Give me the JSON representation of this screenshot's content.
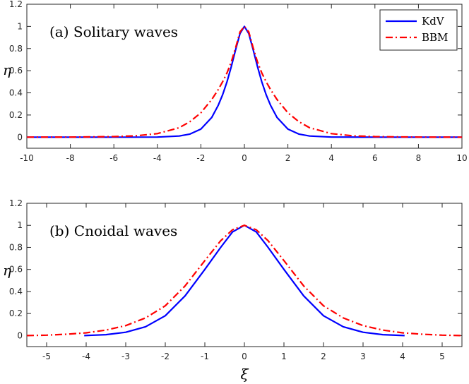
{
  "chart_data": [
    {
      "type": "line",
      "annotation": "(a) Solitary waves",
      "ylabel": "η",
      "xlabel": "",
      "xlim": [
        -10,
        10
      ],
      "ylim": [
        -0.1,
        1.2
      ],
      "xticks": [
        -10,
        -8,
        -6,
        -4,
        -2,
        0,
        2,
        4,
        6,
        8,
        10
      ],
      "yticks": [
        0,
        0.2,
        0.4,
        0.6,
        0.8,
        1,
        1.2
      ],
      "xtick_labels": [
        "-10",
        "-8",
        "-6",
        "-4",
        "-2",
        "0",
        "2",
        "4",
        "6",
        "8",
        "10"
      ],
      "ytick_labels": [
        "0",
        "0.2",
        "0.4",
        "0.6",
        "0.8",
        "1",
        "1.2"
      ],
      "legend": [
        "KdV",
        "BBM"
      ],
      "legend_position": "top-right",
      "series": [
        {
          "name": "KdV",
          "color": "#0000ff",
          "style": "solid",
          "x": [
            -10,
            -8,
            -6,
            -4,
            -3,
            -2.5,
            -2,
            -1.5,
            -1.2,
            -1,
            -0.8,
            -0.6,
            -0.4,
            -0.2,
            0,
            0.2,
            0.4,
            0.6,
            0.8,
            1,
            1.2,
            1.5,
            2,
            2.5,
            3,
            4,
            6,
            8,
            10
          ],
          "y": [
            0,
            0,
            0,
            0.001,
            0.01,
            0.028,
            0.073,
            0.178,
            0.288,
            0.383,
            0.5,
            0.638,
            0.792,
            0.935,
            1,
            0.935,
            0.792,
            0.638,
            0.5,
            0.383,
            0.288,
            0.178,
            0.073,
            0.028,
            0.01,
            0.001,
            0,
            0,
            0
          ]
        },
        {
          "name": "BBM",
          "color": "#ff0000",
          "style": "dashdot",
          "x": [
            -10,
            -8,
            -6,
            -5,
            -4,
            -3,
            -2.5,
            -2,
            -1.5,
            -1.2,
            -1,
            -0.8,
            -0.6,
            -0.4,
            -0.2,
            0,
            0.2,
            0.4,
            0.6,
            0.8,
            1,
            1.2,
            1.5,
            2,
            2.5,
            3,
            4,
            5,
            6,
            8,
            10
          ],
          "y": [
            0,
            0.001,
            0.005,
            0.012,
            0.032,
            0.085,
            0.14,
            0.22,
            0.34,
            0.43,
            0.5,
            0.58,
            0.68,
            0.81,
            0.95,
            1,
            0.95,
            0.81,
            0.68,
            0.58,
            0.5,
            0.43,
            0.34,
            0.22,
            0.14,
            0.085,
            0.032,
            0.012,
            0.005,
            0.001,
            0
          ]
        }
      ]
    },
    {
      "type": "line",
      "annotation": "(b) Cnoidal waves",
      "ylabel": "η",
      "xlabel": "ξ",
      "xlim": [
        -5.5,
        5.5
      ],
      "ylim": [
        -0.1,
        1.2
      ],
      "xticks": [
        -5,
        -4,
        -3,
        -2,
        -1,
        0,
        1,
        2,
        3,
        4,
        5
      ],
      "yticks": [
        0,
        0.2,
        0.4,
        0.6,
        0.8,
        1,
        1.2
      ],
      "xtick_labels": [
        "-5",
        "-4",
        "-3",
        "-2",
        "-1",
        "0",
        "1",
        "2",
        "3",
        "4",
        "5"
      ],
      "ytick_labels": [
        "0",
        "0.2",
        "0.4",
        "0.6",
        "0.8",
        "1",
        "1.2"
      ],
      "series": [
        {
          "name": "KdV",
          "color": "#0000ff",
          "style": "solid",
          "x": [
            -4.05,
            -3.5,
            -3,
            -2.5,
            -2,
            -1.5,
            -1,
            -0.6,
            -0.3,
            0,
            0.3,
            0.6,
            1,
            1.5,
            2,
            2.5,
            3,
            3.5,
            4.05
          ],
          "y": [
            0,
            0.008,
            0.03,
            0.08,
            0.18,
            0.36,
            0.6,
            0.8,
            0.94,
            1,
            0.94,
            0.8,
            0.6,
            0.36,
            0.18,
            0.08,
            0.03,
            0.008,
            0
          ],
          "extent": "finite period, x from -4.05 to 4.05"
        },
        {
          "name": "BBM",
          "color": "#ff0000",
          "style": "dashdot",
          "x": [
            -5.5,
            -5,
            -4.5,
            -4,
            -3.5,
            -3,
            -2.5,
            -2,
            -1.5,
            -1,
            -0.6,
            -0.3,
            0,
            0.3,
            0.6,
            1,
            1.5,
            2,
            2.5,
            3,
            3.5,
            4,
            4.5,
            5,
            5.5
          ],
          "y": [
            0,
            0.004,
            0.012,
            0.025,
            0.05,
            0.09,
            0.16,
            0.27,
            0.45,
            0.68,
            0.86,
            0.96,
            1,
            0.96,
            0.86,
            0.68,
            0.45,
            0.27,
            0.16,
            0.09,
            0.05,
            0.025,
            0.012,
            0.004,
            0
          ]
        }
      ]
    }
  ]
}
